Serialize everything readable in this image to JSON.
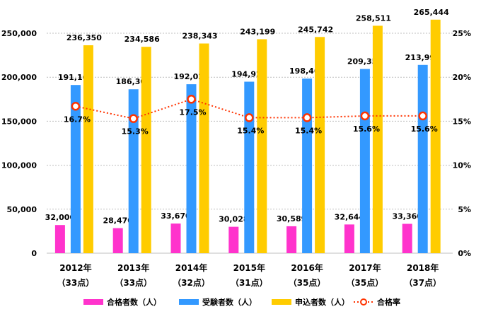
{
  "chart_data": {
    "type": "bar",
    "categories": [
      "2012年",
      "2013年",
      "2014年",
      "2015年",
      "2016年",
      "2017年",
      "2018年"
    ],
    "category_sublabels": [
      "（33点）",
      "（33点）",
      "（32点）",
      "（31点）",
      "（35点）",
      "（35点）",
      "（37点）"
    ],
    "series": [
      {
        "name": "合格者数（人）",
        "type": "bar",
        "axis": "left",
        "color": "#ff33cc",
        "values": [
          32000,
          28470,
          33670,
          30028,
          30589,
          32644,
          33360
        ],
        "labels": [
          "32,000",
          "28,470",
          "33,670",
          "30,028",
          "30,589",
          "32,644",
          "33,360"
        ]
      },
      {
        "name": "受験者数（人）",
        "type": "bar",
        "axis": "left",
        "color": "#3399ff",
        "values": [
          191169,
          186304,
          192029,
          194926,
          198463,
          209354,
          213993
        ],
        "labels": [
          "191,169",
          "186,304",
          "192,029",
          "194,926",
          "198,463",
          "209,354",
          "213,993"
        ]
      },
      {
        "name": "申込者数（人）",
        "type": "bar",
        "axis": "left",
        "color": "#ffcc00",
        "values": [
          236350,
          234586,
          238343,
          243199,
          245742,
          258511,
          265444
        ],
        "labels": [
          "236,350",
          "234,586",
          "238,343",
          "243,199",
          "245,742",
          "258,511",
          "265,444"
        ]
      },
      {
        "name": "合格率",
        "type": "line",
        "axis": "right",
        "color": "#ff3300",
        "values": [
          16.7,
          15.3,
          17.5,
          15.4,
          15.4,
          15.6,
          15.6
        ],
        "labels": [
          "16.7%",
          "15.3%",
          "17.5%",
          "15.4%",
          "15.4%",
          "15.6%",
          "15.6%"
        ]
      }
    ],
    "y_left": {
      "range": [
        0,
        250000
      ],
      "ticks": [
        0,
        50000,
        100000,
        150000,
        200000,
        250000
      ],
      "tick_labels": [
        "0",
        "50,000",
        "100,000",
        "150,000",
        "200,000",
        "250,000"
      ]
    },
    "y_right": {
      "range": [
        0,
        25
      ],
      "ticks": [
        0,
        5,
        10,
        15,
        20,
        25
      ],
      "tick_labels": [
        "0%",
        "5%",
        "10%",
        "15%",
        "20%",
        "25%"
      ]
    },
    "grid": "horizontal-dotted",
    "legend_position": "bottom"
  }
}
